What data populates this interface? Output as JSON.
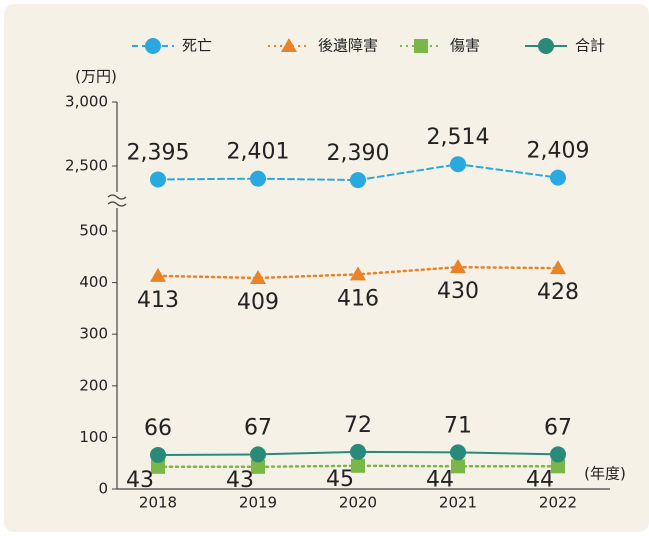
{
  "chart_data": {
    "type": "line",
    "y_unit": "(万円)",
    "x_unit": "(年度)",
    "categories": [
      "2018",
      "2019",
      "2020",
      "2021",
      "2022"
    ],
    "series": [
      {
        "name": "死亡",
        "color": "#29a9df",
        "marker": "circle",
        "dash": "dashed",
        "values": [
          2395,
          2401,
          2390,
          2514,
          2409
        ],
        "value_labels": [
          "2,395",
          "2,401",
          "2,390",
          "2,514",
          "2,409"
        ],
        "label_position": "above"
      },
      {
        "name": "後遺障害",
        "color": "#e8832a",
        "marker": "triangle",
        "dash": "dotted",
        "values": [
          413,
          409,
          416,
          430,
          428
        ],
        "label_position": "below"
      },
      {
        "name": "傷害",
        "color": "#7ab648",
        "marker": "square",
        "dash": "dotted",
        "values": [
          43,
          43,
          45,
          44,
          44
        ],
        "label_position": "left"
      },
      {
        "name": "合計",
        "color": "#2a8a7a",
        "marker": "circle",
        "dash": "solid",
        "values": [
          66,
          67,
          72,
          71,
          67
        ],
        "label_position": "above"
      }
    ],
    "ylim": [
      0,
      3000
    ],
    "y_break": [
      500,
      2500
    ],
    "yticks": [
      0,
      100,
      200,
      300,
      400,
      500,
      {
        "value": 2500,
        "label": "2,500"
      },
      {
        "value": 3000,
        "label": "3,000"
      }
    ],
    "legend": "top"
  }
}
